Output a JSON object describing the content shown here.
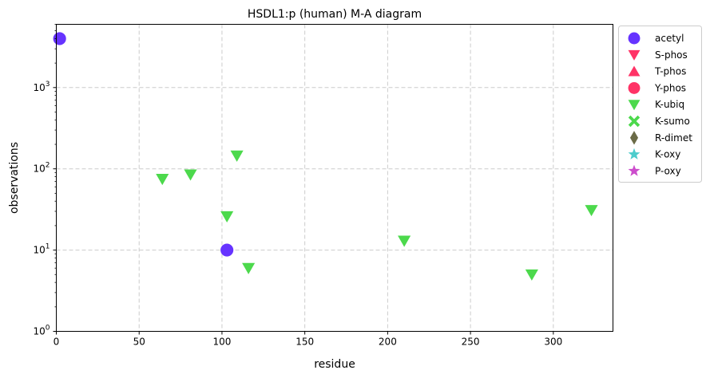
{
  "chart_data": {
    "type": "scatter",
    "title": "HSDL1:p (human) M-A diagram",
    "xlabel": "residue",
    "ylabel": "observations",
    "xlim": [
      0,
      336
    ],
    "ylim": [
      1,
      6000
    ],
    "yscale": "log",
    "x_ticks": [
      0,
      50,
      100,
      150,
      200,
      250,
      300
    ],
    "y_ticks": [
      {
        "value": 1,
        "base": "10",
        "exp": "0"
      },
      {
        "value": 10,
        "base": "10",
        "exp": "1"
      },
      {
        "value": 100,
        "base": "10",
        "exp": "2"
      },
      {
        "value": 1000,
        "base": "10",
        "exp": "3"
      }
    ],
    "grid": true,
    "legend_position": "outside-right",
    "series": [
      {
        "name": "acetyl",
        "marker": "circle",
        "color": "#6633ff",
        "points": [
          {
            "x": 2,
            "y": 4000
          },
          {
            "x": 103,
            "y": 10
          }
        ]
      },
      {
        "name": "S-phos",
        "marker": "triangle-down",
        "color": "#ff3366",
        "points": []
      },
      {
        "name": "T-phos",
        "marker": "triangle-up",
        "color": "#ff3366",
        "points": []
      },
      {
        "name": "Y-phos",
        "marker": "circle",
        "color": "#ff3366",
        "points": []
      },
      {
        "name": "K-ubiq",
        "marker": "triangle-down",
        "color": "#4cd94c",
        "points": [
          {
            "x": 64,
            "y": 75
          },
          {
            "x": 81,
            "y": 85
          },
          {
            "x": 109,
            "y": 145
          },
          {
            "x": 103,
            "y": 26
          },
          {
            "x": 116,
            "y": 6
          },
          {
            "x": 210,
            "y": 13
          },
          {
            "x": 287,
            "y": 5
          },
          {
            "x": 323,
            "y": 31
          }
        ]
      },
      {
        "name": "K-sumo",
        "marker": "x-filled",
        "color": "#4cd94c",
        "points": []
      },
      {
        "name": "R-dimet",
        "marker": "diamond",
        "color": "#6b6b47",
        "points": []
      },
      {
        "name": "K-oxy",
        "marker": "star",
        "color": "#4dcccc",
        "points": []
      },
      {
        "name": "P-oxy",
        "marker": "star",
        "color": "#cc4dcc",
        "points": []
      }
    ]
  }
}
